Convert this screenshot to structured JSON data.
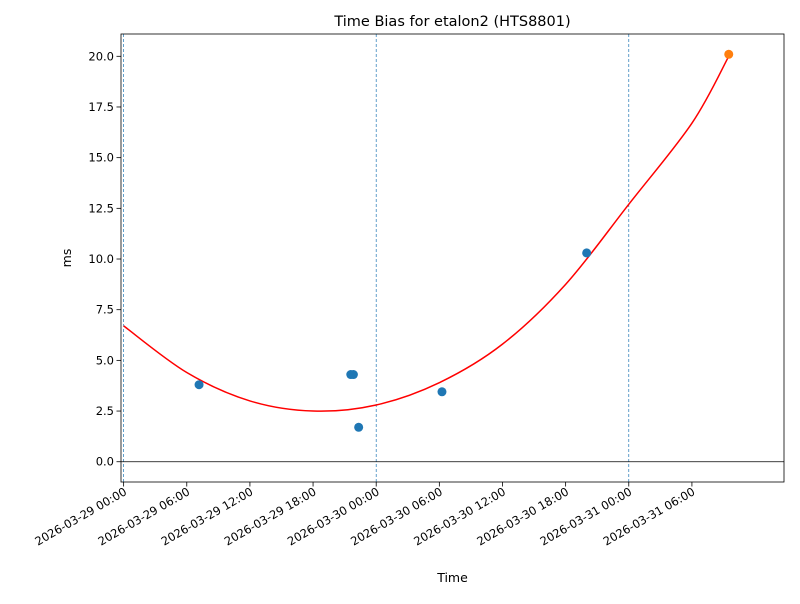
{
  "chart_data": {
    "type": "scatter",
    "title": "Time Bias for etalon2 (HTS8801)",
    "xlabel": "Time",
    "ylabel": "ms",
    "xlim": [
      "2026-03-28 23:45",
      "2026-03-31 14:45"
    ],
    "ylim": [
      -1.0,
      21.1
    ],
    "x_ticks": [
      "2026-03-29 00:00",
      "2026-03-29 06:00",
      "2026-03-29 12:00",
      "2026-03-29 18:00",
      "2026-03-30 00:00",
      "2026-03-30 06:00",
      "2026-03-30 12:00",
      "2026-03-30 18:00",
      "2026-03-31 00:00",
      "2026-03-31 06:00"
    ],
    "y_ticks": [
      "0.0",
      "2.5",
      "5.0",
      "7.5",
      "10.0",
      "12.5",
      "15.0",
      "17.5",
      "20.0"
    ],
    "vertical_lines": [
      "2026-03-29 00:00",
      "2026-03-30 00:00",
      "2026-03-31 00:00"
    ],
    "horizontal_line": 0,
    "series": [
      {
        "kind": "points",
        "color": "#1f77b4",
        "points": [
          {
            "x": "2026-03-29 07:10",
            "y": 3.8
          },
          {
            "x": "2026-03-29 21:35",
            "y": 4.3
          },
          {
            "x": "2026-03-29 21:50",
            "y": 4.3
          },
          {
            "x": "2026-03-29 22:20",
            "y": 1.7
          },
          {
            "x": "2026-03-30 06:15",
            "y": 3.45
          },
          {
            "x": "2026-03-30 20:00",
            "y": 10.3
          }
        ]
      },
      {
        "kind": "points",
        "color": "#ff7f0e",
        "points": [
          {
            "x": "2026-03-31 09:30",
            "y": 20.1
          }
        ]
      },
      {
        "kind": "line",
        "color": "#ff0000",
        "points": [
          {
            "x": "2026-03-29 00:00",
            "y": 6.7
          },
          {
            "x": "2026-03-29 06:00",
            "y": 4.4
          },
          {
            "x": "2026-03-29 12:00",
            "y": 3.0
          },
          {
            "x": "2026-03-29 18:00",
            "y": 2.5
          },
          {
            "x": "2026-03-30 00:00",
            "y": 2.8
          },
          {
            "x": "2026-03-30 06:00",
            "y": 3.9
          },
          {
            "x": "2026-03-30 12:00",
            "y": 5.8
          },
          {
            "x": "2026-03-30 18:00",
            "y": 8.75
          },
          {
            "x": "2026-03-31 00:00",
            "y": 12.7
          },
          {
            "x": "2026-03-31 06:00",
            "y": 16.7
          },
          {
            "x": "2026-03-31 09:30",
            "y": 20.0
          }
        ]
      }
    ]
  }
}
